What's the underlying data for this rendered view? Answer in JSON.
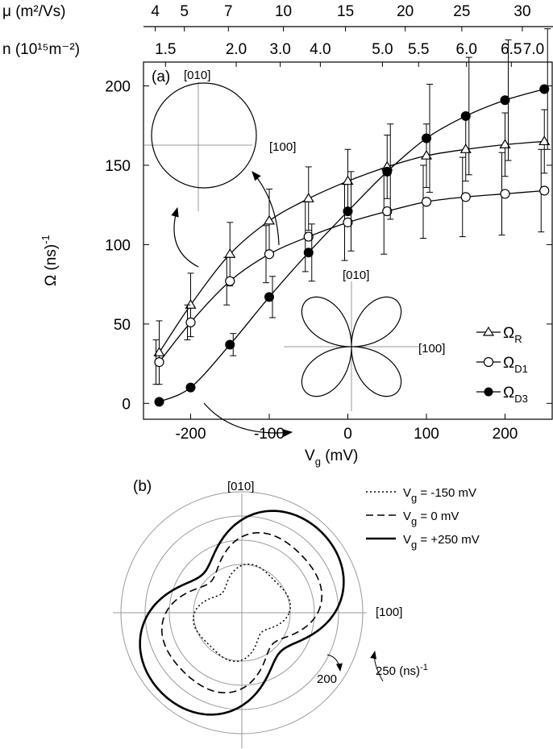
{
  "chart_data": [
    {
      "panel": "(a)",
      "type": "line",
      "xlabel_main": "V",
      "xlabel_sub": "g",
      "xlabel_unit": " (mV)",
      "ylabel": "Ω (ns)",
      "ylabel_sup": "-1",
      "xlim": [
        -260,
        260
      ],
      "ylim": [
        -10,
        215
      ],
      "x_ticks": [
        -200,
        -100,
        0,
        100,
        200
      ],
      "y_ticks": [
        0,
        50,
        100,
        150,
        200
      ],
      "x_tick_labels": [
        "-200",
        "-100",
        "0",
        "100",
        "200"
      ],
      "y_tick_labels": [
        "0",
        "50",
        "100",
        "150",
        "200"
      ],
      "top_axis_mu": {
        "label": "μ (m²/Vs)",
        "ticks": [
          {
            "v": -245,
            "t": "4"
          },
          {
            "v": -208,
            "t": "5"
          },
          {
            "v": -152,
            "t": "7"
          },
          {
            "v": -82,
            "t": "10"
          },
          {
            "v": -3,
            "t": "15"
          },
          {
            "v": 73,
            "t": "20"
          },
          {
            "v": 145,
            "t": "25"
          },
          {
            "v": 222,
            "t": "30"
          }
        ]
      },
      "top_axis_n": {
        "label": "n (10¹⁵m⁻²)",
        "ticks": [
          {
            "v": -232,
            "t": "1.5"
          },
          {
            "v": -142,
            "t": "2.0"
          },
          {
            "v": -86,
            "t": "3.0"
          },
          {
            "v": -35,
            "t": "4.0"
          },
          {
            "v": 44,
            "t": "5.0"
          },
          {
            "v": 90,
            "t": "5.5"
          },
          {
            "v": 151,
            "t": "6.0"
          },
          {
            "v": 208,
            "t": "6.5"
          },
          {
            "v": 260,
            "t": "7.0"
          }
        ]
      },
      "x": [
        -240,
        -200,
        -150,
        -100,
        -50,
        0,
        50,
        100,
        150,
        200,
        250
      ],
      "series": [
        {
          "name": "Ω",
          "sub": "R",
          "marker": "triangle",
          "values": [
            32,
            62,
            94,
            115,
            129,
            140,
            149,
            156,
            160,
            163,
            165
          ],
          "err": [
            20,
            20,
            20,
            20,
            20,
            20,
            20,
            20,
            20,
            20,
            20
          ]
        },
        {
          "name": "Ω",
          "sub": "D1",
          "marker": "circle-open",
          "values": [
            26,
            51,
            77,
            94,
            105,
            114,
            121,
            127,
            130,
            132,
            134
          ],
          "err": [
            14,
            11,
            15,
            18,
            22,
            24,
            27,
            23,
            25,
            26,
            26
          ]
        },
        {
          "name": "Ω",
          "sub": "D3",
          "marker": "circle-filled",
          "values": [
            1,
            10,
            37,
            67,
            95,
            121,
            146,
            167,
            181,
            191,
            198
          ],
          "err": [
            0,
            0,
            7,
            13,
            18,
            25,
            30,
            34,
            37,
            38,
            38
          ]
        }
      ],
      "inset_labels": {
        "top_dir": "[010]",
        "side_dir": "[100]"
      }
    },
    {
      "panel": "(b)",
      "type": "polar",
      "axis_labels": {
        "top": "[010]",
        "right": "[100]"
      },
      "ring_labels": [
        "200",
        "250 (ns)"
      ],
      "ring_label_sup": "-1",
      "rings": [
        100,
        150,
        200,
        250
      ],
      "series": [
        {
          "name": "V",
          "sub": "g",
          "value_text": " = -150 mV",
          "style": "dotted",
          "r0": 87,
          "a": 0.215,
          "b": 0.125
        },
        {
          "name": "V",
          "sub": "g",
          "value_text": " = 0 mV",
          "style": "dashed",
          "r0": 144,
          "a": 0.28,
          "b": 0.09
        },
        {
          "name": "V",
          "sub": "g",
          "value_text": " = +250 mV",
          "style": "solid",
          "r0": 183,
          "a": 0.33,
          "b": 0.05
        }
      ]
    }
  ]
}
